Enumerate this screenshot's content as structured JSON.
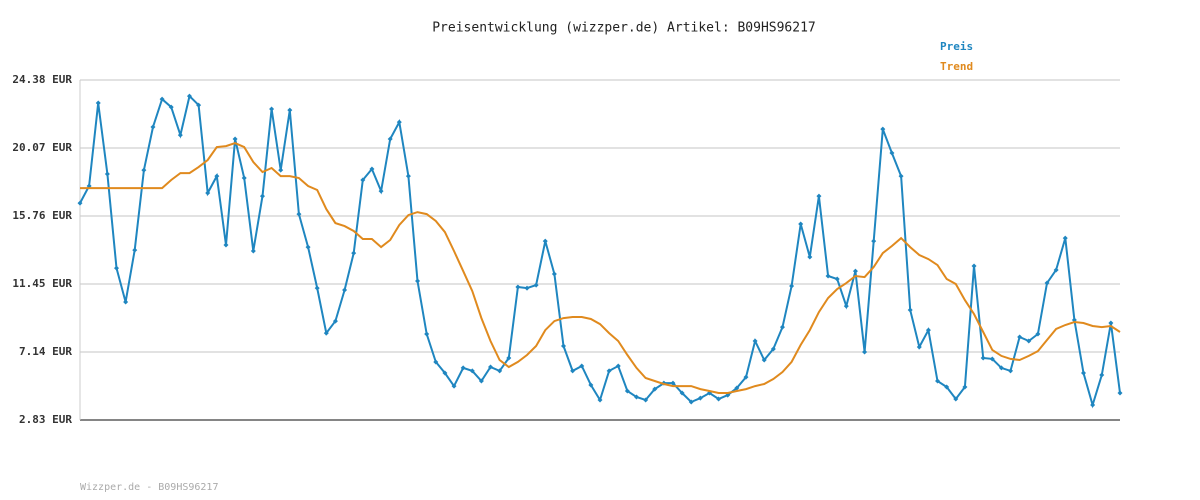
{
  "chart_data": {
    "type": "line",
    "title": "Preisentwicklung (wizzper.de) Artikel: B09HS96217",
    "ylim": [
      2.83,
      24.38
    ],
    "yticks": [
      {
        "value": 2.83,
        "label": "2.83 EUR"
      },
      {
        "value": 7.14,
        "label": "7.14 EUR"
      },
      {
        "value": 11.45,
        "label": "11.45 EUR"
      },
      {
        "value": 15.76,
        "label": "15.76 EUR"
      },
      {
        "value": 20.07,
        "label": "20.07 EUR"
      },
      {
        "value": 24.38,
        "label": "24.38 EUR"
      }
    ],
    "grid": true,
    "legend": "top-right",
    "series": [
      {
        "name": "Preis",
        "color": "#1f86c0",
        "markers": true,
        "values": [
          16.58,
          17.66,
          22.92,
          18.42,
          12.46,
          10.31,
          13.6,
          18.67,
          21.4,
          23.17,
          22.66,
          20.89,
          23.36,
          22.79,
          17.22,
          18.29,
          13.92,
          20.64,
          18.17,
          13.54,
          17.02,
          22.54,
          18.67,
          22.47,
          15.88,
          13.79,
          11.19,
          8.34,
          9.1,
          11.07,
          13.41,
          18.04,
          18.74,
          17.34,
          20.64,
          21.71,
          18.29,
          11.64,
          8.28,
          6.51,
          5.81,
          4.98,
          6.13,
          5.94,
          5.3,
          6.19,
          5.94,
          6.76,
          11.26,
          11.19,
          11.38,
          14.17,
          12.08,
          7.52,
          5.94,
          6.25,
          5.05,
          4.1,
          5.94,
          6.25,
          4.67,
          4.29,
          4.1,
          4.79,
          5.17,
          5.17,
          4.54,
          3.97,
          4.22,
          4.54,
          4.16,
          4.41,
          4.86,
          5.55,
          7.84,
          6.63,
          7.33,
          8.72,
          11.32,
          15.25,
          13.16,
          17.02,
          11.96,
          11.77,
          10.05,
          12.27,
          7.14,
          14.17,
          21.27,
          19.75,
          18.29,
          9.8,
          7.46,
          8.53,
          5.3,
          4.92,
          4.16,
          4.92,
          12.59,
          6.76,
          6.7,
          6.13,
          5.94,
          8.09,
          7.84,
          8.28,
          11.51,
          12.34,
          14.36,
          9.17,
          5.81,
          3.78,
          5.68,
          8.98,
          4.54
        ]
      },
      {
        "name": "Trend",
        "color": "#e08a1e",
        "markers": false,
        "values": [
          17.53,
          17.53,
          17.53,
          17.53,
          17.53,
          17.53,
          17.53,
          17.53,
          17.53,
          17.53,
          18.04,
          18.48,
          18.48,
          18.86,
          19.31,
          20.13,
          20.19,
          20.38,
          20.13,
          19.18,
          18.55,
          18.8,
          18.29,
          18.29,
          18.17,
          17.66,
          17.41,
          16.2,
          15.31,
          15.12,
          14.81,
          14.3,
          14.3,
          13.79,
          14.24,
          15.19,
          15.82,
          16.01,
          15.88,
          15.44,
          14.74,
          13.54,
          12.27,
          11.0,
          9.29,
          7.84,
          6.63,
          6.19,
          6.51,
          6.95,
          7.52,
          8.53,
          9.1,
          9.29,
          9.36,
          9.36,
          9.23,
          8.91,
          8.34,
          7.84,
          6.95,
          6.13,
          5.49,
          5.3,
          5.11,
          4.98,
          4.98,
          4.98,
          4.79,
          4.67,
          4.54,
          4.54,
          4.67,
          4.79,
          4.98,
          5.11,
          5.43,
          5.87,
          6.51,
          7.59,
          8.53,
          9.67,
          10.56,
          11.13,
          11.51,
          11.96,
          11.89,
          12.53,
          13.41,
          13.86,
          14.36,
          13.79,
          13.29,
          13.03,
          12.65,
          11.77,
          11.45,
          10.43,
          9.55,
          8.41,
          7.27,
          6.89,
          6.7,
          6.63,
          6.89,
          7.2,
          7.9,
          8.6,
          8.85,
          9.04,
          8.98,
          8.79,
          8.72,
          8.79,
          8.41
        ]
      }
    ],
    "footer": "Wizzper.de - B09HS96217"
  }
}
